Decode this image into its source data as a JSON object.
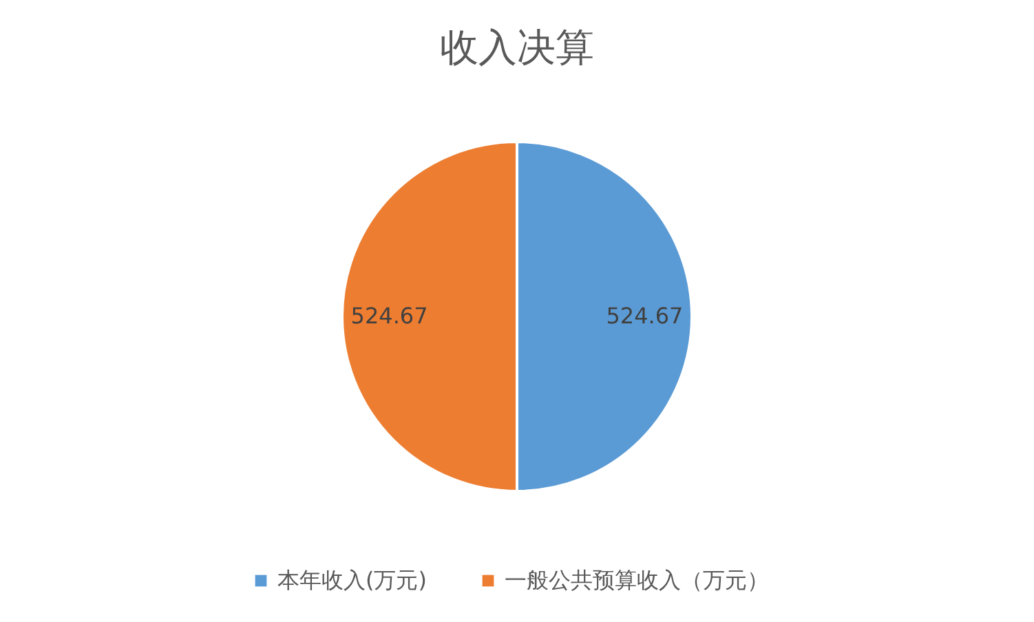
{
  "chart_data": {
    "type": "pie",
    "title": "收入决算",
    "categories": [
      "本年收入(万元)",
      "一般公共预算收入（万元）"
    ],
    "values": [
      524.67,
      524.67
    ],
    "colors": [
      "#5b9bd5",
      "#ed7d31"
    ],
    "data_labels": true,
    "legend": "bottom"
  }
}
